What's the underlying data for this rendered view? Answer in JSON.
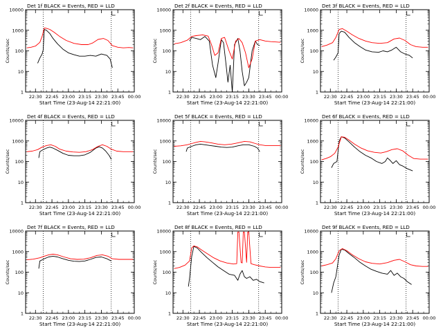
{
  "figure": {
    "ylabel": "Counts/sec",
    "xlabel": "Start Time (23-Aug-14 22:21:00)",
    "xticks": [
      "22:30",
      "22:45",
      "23:00",
      "23:15",
      "23:30",
      "23:45",
      "00:00"
    ],
    "yticks": [
      "1",
      "10",
      "100",
      "1000",
      "10000"
    ],
    "xlim": [
      "22:21",
      "00:00"
    ],
    "ylim": [
      1,
      10000
    ],
    "yscale": "log",
    "markers": [
      "22:37",
      "23:39"
    ],
    "colors": {
      "events": "#000000",
      "lld": "#ff0000"
    }
  },
  "chart_data": [
    {
      "type": "line",
      "title": "Det 1f BLACK = Events, RED = LLD",
      "series": [
        {
          "name": "Events",
          "color": "#000000",
          "x": [
            "22:32",
            "22:34",
            "22:36",
            "22:37",
            "22:38",
            "22:40",
            "22:43",
            "22:46",
            "22:50",
            "22:55",
            "23:00",
            "23:05",
            "23:10",
            "23:15",
            "23:20",
            "23:25",
            "23:30",
            "23:35",
            "23:38",
            "23:40"
          ],
          "values": [
            25,
            45,
            70,
            110,
            1100,
            1000,
            700,
            400,
            220,
            120,
            80,
            65,
            55,
            55,
            60,
            55,
            70,
            60,
            40,
            15
          ]
        },
        {
          "name": "LLD",
          "color": "#ff0000",
          "x": [
            "22:22",
            "22:26",
            "22:30",
            "22:34",
            "22:36",
            "22:38",
            "22:40",
            "22:43",
            "22:47",
            "22:52",
            "22:58",
            "23:05",
            "23:12",
            "23:18",
            "23:22",
            "23:27",
            "23:32",
            "23:36",
            "23:40",
            "23:45",
            "23:50",
            "23:55",
            "23:59"
          ],
          "values": [
            140,
            150,
            170,
            260,
            500,
            1300,
            1250,
            1100,
            800,
            500,
            320,
            230,
            200,
            200,
            240,
            360,
            400,
            320,
            180,
            150,
            140,
            145,
            140
          ]
        }
      ]
    },
    {
      "type": "line",
      "title": "Det 2f BLACK = Events, RED = LLD",
      "series": [
        {
          "name": "Events",
          "color": "#000000",
          "x": [
            "22:36",
            "22:38",
            "22:42",
            "22:46",
            "22:50",
            "22:54",
            "22:57",
            "23:00",
            "23:02",
            "23:05",
            "23:07",
            "23:09",
            "23:11",
            "23:13",
            "23:15",
            "23:17",
            "23:20",
            "23:22",
            "23:24",
            "23:26",
            "23:28",
            "23:30",
            "23:33",
            "23:36",
            "23:38",
            "23:40"
          ],
          "values": [
            300,
            450,
            400,
            350,
            500,
            300,
            20,
            5,
            25,
            350,
            250,
            30,
            3,
            20,
            1,
            200,
            400,
            100,
            10,
            2,
            3,
            5,
            100,
            300,
            200,
            180
          ]
        },
        {
          "name": "LLD",
          "color": "#ff0000",
          "x": [
            "22:22",
            "22:28",
            "22:34",
            "22:38",
            "22:42",
            "22:48",
            "22:53",
            "22:56",
            "22:59",
            "23:02",
            "23:05",
            "23:08",
            "23:12",
            "23:15",
            "23:18",
            "23:21",
            "23:24",
            "23:27",
            "23:30",
            "23:33",
            "23:36",
            "23:40",
            "23:45",
            "23:50",
            "23:55",
            "23:59"
          ],
          "values": [
            220,
            250,
            330,
            500,
            550,
            600,
            520,
            200,
            60,
            80,
            400,
            450,
            100,
            40,
            300,
            400,
            250,
            80,
            15,
            40,
            300,
            350,
            300,
            280,
            270,
            260
          ]
        }
      ]
    },
    {
      "type": "line",
      "title": "Det 3f BLACK = Events, RED = LLD",
      "series": [
        {
          "name": "Events",
          "color": "#000000",
          "x": [
            "22:33",
            "22:35",
            "22:37",
            "22:38",
            "22:40",
            "22:43",
            "22:47",
            "22:52",
            "22:57",
            "23:02",
            "23:08",
            "23:14",
            "23:18",
            "23:22",
            "23:26",
            "23:30",
            "23:34",
            "23:38",
            "23:42",
            "23:45"
          ],
          "values": [
            35,
            50,
            80,
            700,
            900,
            800,
            450,
            250,
            160,
            110,
            90,
            85,
            100,
            90,
            110,
            150,
            90,
            70,
            60,
            45
          ]
        },
        {
          "name": "LLD",
          "color": "#ff0000",
          "x": [
            "22:22",
            "22:27",
            "22:32",
            "22:35",
            "22:38",
            "22:41",
            "22:45",
            "22:50",
            "22:56",
            "23:02",
            "23:08",
            "23:15",
            "23:22",
            "23:28",
            "23:33",
            "23:38",
            "23:43",
            "23:48",
            "23:54",
            "23:59"
          ],
          "values": [
            160,
            190,
            250,
            450,
            1100,
            1200,
            900,
            600,
            400,
            300,
            250,
            230,
            250,
            380,
            420,
            320,
            200,
            160,
            150,
            150
          ]
        }
      ]
    },
    {
      "type": "line",
      "title": "Det 4f BLACK = Events, RED = LLD",
      "series": [
        {
          "name": "Events",
          "color": "#000000",
          "x": [
            "22:33",
            "22:34",
            "22:37",
            "22:40",
            "22:43",
            "22:46",
            "22:50",
            "22:55",
            "23:00",
            "23:05",
            "23:10",
            "23:15",
            "23:20",
            "23:25",
            "23:28",
            "23:31",
            "23:34",
            "23:37",
            "23:39"
          ],
          "values": [
            150,
            300,
            380,
            450,
            500,
            450,
            350,
            250,
            200,
            190,
            190,
            210,
            280,
            450,
            520,
            450,
            320,
            200,
            130
          ]
        },
        {
          "name": "LLD",
          "color": "#ff0000",
          "x": [
            "22:22",
            "22:27",
            "22:32",
            "22:36",
            "22:40",
            "22:44",
            "22:48",
            "22:52",
            "22:58",
            "23:04",
            "23:10",
            "23:16",
            "23:22",
            "23:27",
            "23:31",
            "23:35",
            "23:39",
            "23:44",
            "23:50",
            "23:55",
            "23:59"
          ],
          "values": [
            300,
            320,
            380,
            500,
            600,
            650,
            550,
            400,
            320,
            290,
            280,
            300,
            380,
            550,
            650,
            550,
            400,
            320,
            300,
            300,
            300
          ]
        }
      ]
    },
    {
      "type": "line",
      "title": "Det 5f BLACK = Events, RED = LLD",
      "series": [
        {
          "name": "Events",
          "color": "#000000",
          "x": [
            "22:33",
            "22:34",
            "22:38",
            "22:42",
            "22:46",
            "22:50",
            "22:55",
            "23:00",
            "23:05",
            "23:10",
            "23:15",
            "23:20",
            "23:25",
            "23:30",
            "23:35",
            "23:38",
            "23:40"
          ],
          "values": [
            300,
            450,
            550,
            650,
            700,
            650,
            600,
            550,
            500,
            480,
            500,
            580,
            650,
            650,
            550,
            450,
            300
          ]
        },
        {
          "name": "LLD",
          "color": "#ff0000",
          "x": [
            "22:22",
            "22:28",
            "22:34",
            "22:38",
            "22:42",
            "22:46",
            "22:50",
            "22:56",
            "23:02",
            "23:08",
            "23:14",
            "23:20",
            "23:26",
            "23:31",
            "23:36",
            "23:40",
            "23:45",
            "23:50",
            "23:55",
            "23:59"
          ],
          "values": [
            550,
            580,
            650,
            750,
            850,
            950,
            900,
            800,
            700,
            650,
            700,
            800,
            950,
            900,
            750,
            650,
            600,
            600,
            600,
            600
          ]
        }
      ]
    },
    {
      "type": "line",
      "title": "Det 6f BLACK = Events, RED = LLD",
      "series": [
        {
          "name": "Events",
          "color": "#000000",
          "x": [
            "22:31",
            "22:33",
            "22:36",
            "22:38",
            "22:40",
            "22:43",
            "22:47",
            "22:52",
            "22:57",
            "23:02",
            "23:07",
            "23:12",
            "23:17",
            "23:20",
            "23:22",
            "23:24",
            "23:27",
            "23:30",
            "23:33",
            "23:36",
            "23:40",
            "23:45"
          ],
          "values": [
            50,
            80,
            100,
            1000,
            1600,
            1400,
            900,
            500,
            300,
            200,
            150,
            100,
            80,
            100,
            150,
            120,
            80,
            110,
            70,
            60,
            45,
            35
          ]
        },
        {
          "name": "LLD",
          "color": "#ff0000",
          "x": [
            "22:22",
            "22:26",
            "22:30",
            "22:34",
            "22:37",
            "22:40",
            "22:43",
            "22:47",
            "22:52",
            "22:58",
            "23:04",
            "23:10",
            "23:16",
            "23:21",
            "23:26",
            "23:31",
            "23:36",
            "23:41",
            "23:46",
            "23:52",
            "23:59"
          ],
          "values": [
            120,
            140,
            170,
            250,
            500,
            1600,
            1500,
            1100,
            700,
            450,
            330,
            280,
            260,
            300,
            380,
            420,
            330,
            200,
            140,
            130,
            130
          ]
        }
      ]
    },
    {
      "type": "line",
      "title": "Det 7f BLACK = Events, RED = LLD",
      "series": [
        {
          "name": "Events",
          "color": "#000000",
          "x": [
            "22:33",
            "22:34",
            "22:38",
            "22:42",
            "22:46",
            "22:50",
            "22:55",
            "23:00",
            "23:05",
            "23:10",
            "23:15",
            "23:20",
            "23:25",
            "23:30",
            "23:35",
            "23:39"
          ],
          "values": [
            150,
            350,
            450,
            550,
            600,
            550,
            450,
            380,
            340,
            330,
            350,
            420,
            520,
            550,
            450,
            350
          ]
        },
        {
          "name": "LLD",
          "color": "#ff0000",
          "x": [
            "22:22",
            "22:28",
            "22:34",
            "22:38",
            "22:42",
            "22:46",
            "22:50",
            "22:56",
            "23:02",
            "23:08",
            "23:14",
            "23:20",
            "23:26",
            "23:31",
            "23:36",
            "23:40",
            "23:46",
            "23:52",
            "23:59"
          ],
          "values": [
            400,
            430,
            500,
            600,
            700,
            750,
            700,
            550,
            450,
            420,
            430,
            500,
            650,
            700,
            600,
            450,
            420,
            420,
            420
          ]
        }
      ]
    },
    {
      "type": "line",
      "title": "Det 8f BLACK = Events, RED = LLD",
      "series": [
        {
          "name": "Events",
          "color": "#000000",
          "x": [
            "22:35",
            "22:36",
            "22:38",
            "22:40",
            "22:43",
            "22:47",
            "22:52",
            "22:57",
            "23:02",
            "23:07",
            "23:12",
            "23:17",
            "23:20",
            "23:22",
            "23:24",
            "23:26",
            "23:28",
            "23:31",
            "23:34",
            "23:37",
            "23:40",
            "23:44"
          ],
          "values": [
            20,
            50,
            600,
            1800,
            1500,
            900,
            500,
            300,
            180,
            120,
            80,
            70,
            40,
            80,
            120,
            60,
            50,
            60,
            40,
            45,
            35,
            30
          ]
        },
        {
          "name": "LLD",
          "color": "#ff0000",
          "x": [
            "22:22",
            "22:27",
            "22:32",
            "22:36",
            "22:38",
            "22:40",
            "22:43",
            "22:47",
            "22:52",
            "22:58",
            "23:04",
            "23:10",
            "23:16",
            "23:19",
            "23:20",
            "23:21",
            "23:23",
            "23:24",
            "23:25",
            "23:26",
            "23:28",
            "23:29",
            "23:30",
            "23:32",
            "23:35",
            "23:40",
            "23:45",
            "23:50",
            "23:55",
            "23:59"
          ],
          "values": [
            150,
            170,
            220,
            350,
            1500,
            1900,
            1700,
            1200,
            800,
            500,
            350,
            280,
            250,
            260,
            9000,
            9000,
            300,
            280,
            9000,
            9000,
            300,
            9000,
            9000,
            260,
            230,
            200,
            180,
            170,
            170,
            170
          ]
        }
      ]
    },
    {
      "type": "line",
      "title": "Det 9f BLACK = Events, RED = LLD",
      "series": [
        {
          "name": "Events",
          "color": "#000000",
          "x": [
            "22:31",
            "22:33",
            "22:35",
            "22:38",
            "22:40",
            "22:43",
            "22:47",
            "22:52",
            "22:57",
            "23:02",
            "23:07",
            "23:12",
            "23:17",
            "23:22",
            "23:25",
            "23:28",
            "23:31",
            "23:34",
            "23:37",
            "23:40",
            "23:44"
          ],
          "values": [
            10,
            30,
            60,
            700,
            1300,
            1200,
            800,
            500,
            300,
            200,
            140,
            110,
            90,
            80,
            120,
            70,
            90,
            60,
            50,
            35,
            25
          ]
        },
        {
          "name": "LLD",
          "color": "#ff0000",
          "x": [
            "22:22",
            "22:27",
            "22:32",
            "22:35",
            "22:38",
            "22:41",
            "22:45",
            "22:50",
            "22:56",
            "23:02",
            "23:08",
            "23:15",
            "23:22",
            "23:28",
            "23:33",
            "23:38",
            "23:43",
            "23:48",
            "23:54",
            "23:59"
          ],
          "values": [
            200,
            230,
            280,
            450,
            1100,
            1400,
            1100,
            700,
            450,
            320,
            270,
            250,
            290,
            380,
            420,
            320,
            230,
            200,
            190,
            190
          ]
        }
      ]
    }
  ]
}
